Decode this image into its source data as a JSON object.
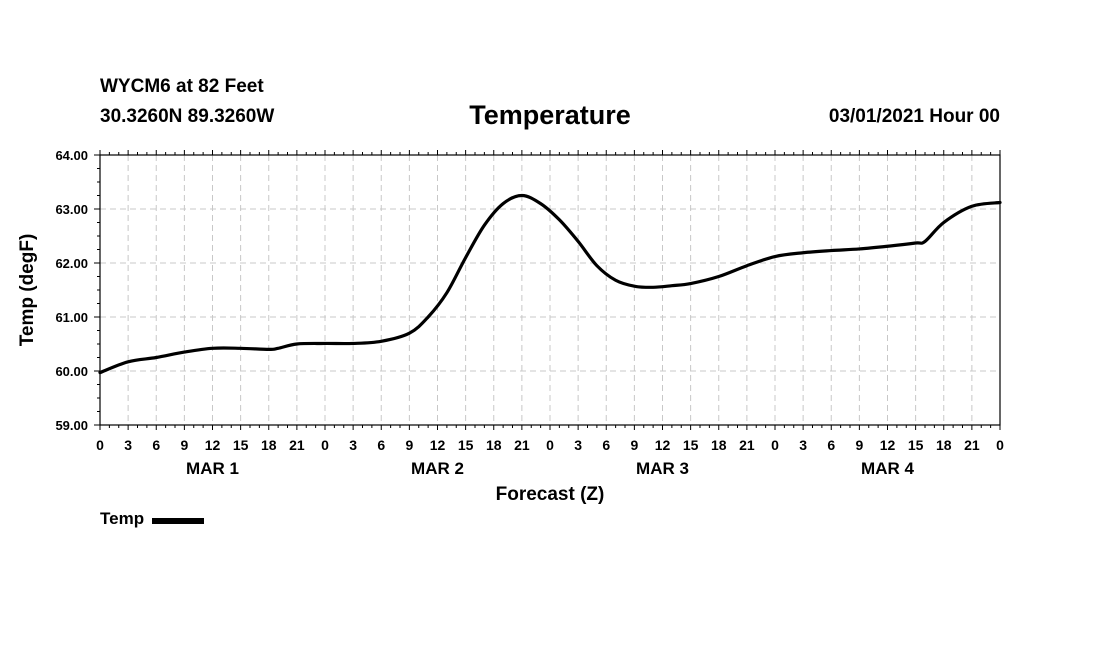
{
  "header": {
    "station": "WYCM6 at 82 Feet",
    "coords": "30.3260N 89.3260W",
    "title": "Temperature",
    "datetime": "03/01/2021 Hour 00"
  },
  "legend": {
    "label": "Temp"
  },
  "colors": {
    "line": "#000000",
    "grid": "#c8c8c8",
    "axis": "#000000"
  },
  "chart_data": {
    "type": "line",
    "title": "Temperature",
    "xlabel": "Forecast (Z)",
    "ylabel": "Temp (degF)",
    "xlim": [
      0,
      96
    ],
    "ylim": [
      59.0,
      64.0
    ],
    "yticks": [
      59.0,
      60.0,
      61.0,
      62.0,
      63.0,
      64.0
    ],
    "ytick_labels": [
      "59.00",
      "60.00",
      "61.00",
      "62.00",
      "63.00",
      "64.00"
    ],
    "xticks": [
      0,
      3,
      6,
      9,
      12,
      15,
      18,
      21,
      24,
      27,
      30,
      33,
      36,
      39,
      42,
      45,
      48,
      51,
      54,
      57,
      60,
      63,
      66,
      69,
      72,
      75,
      78,
      81,
      84,
      87,
      90,
      93,
      96
    ],
    "xtick_labels": [
      "0",
      "3",
      "6",
      "9",
      "12",
      "15",
      "18",
      "21",
      "0",
      "3",
      "6",
      "9",
      "12",
      "15",
      "18",
      "21",
      "0",
      "3",
      "6",
      "9",
      "12",
      "15",
      "18",
      "21",
      "0",
      "3",
      "6",
      "9",
      "12",
      "15",
      "18",
      "21",
      "0"
    ],
    "day_labels": [
      {
        "text": "MAR 1",
        "x": 12
      },
      {
        "text": "MAR 2",
        "x": 36
      },
      {
        "text": "MAR 3",
        "x": 60
      },
      {
        "text": "MAR 4",
        "x": 84
      }
    ],
    "grid": true,
    "series": [
      {
        "name": "Temp",
        "x": [
          0,
          3,
          6,
          9,
          12,
          15,
          18,
          19,
          21,
          24,
          27,
          30,
          33,
          35,
          37,
          39,
          41,
          43,
          45,
          47,
          49,
          51,
          53,
          55,
          57,
          59,
          61,
          63,
          66,
          69,
          72,
          75,
          78,
          81,
          84,
          87,
          88,
          90,
          93,
          96
        ],
        "y": [
          59.97,
          60.17,
          60.25,
          60.35,
          60.42,
          60.42,
          60.4,
          60.42,
          60.5,
          60.51,
          60.51,
          60.55,
          60.7,
          61.0,
          61.45,
          62.1,
          62.7,
          63.1,
          63.25,
          63.1,
          62.8,
          62.4,
          61.95,
          61.68,
          61.57,
          61.55,
          61.58,
          61.62,
          61.75,
          61.95,
          62.12,
          62.19,
          62.23,
          62.26,
          62.31,
          62.37,
          62.4,
          62.75,
          63.05,
          63.12
        ]
      }
    ]
  }
}
